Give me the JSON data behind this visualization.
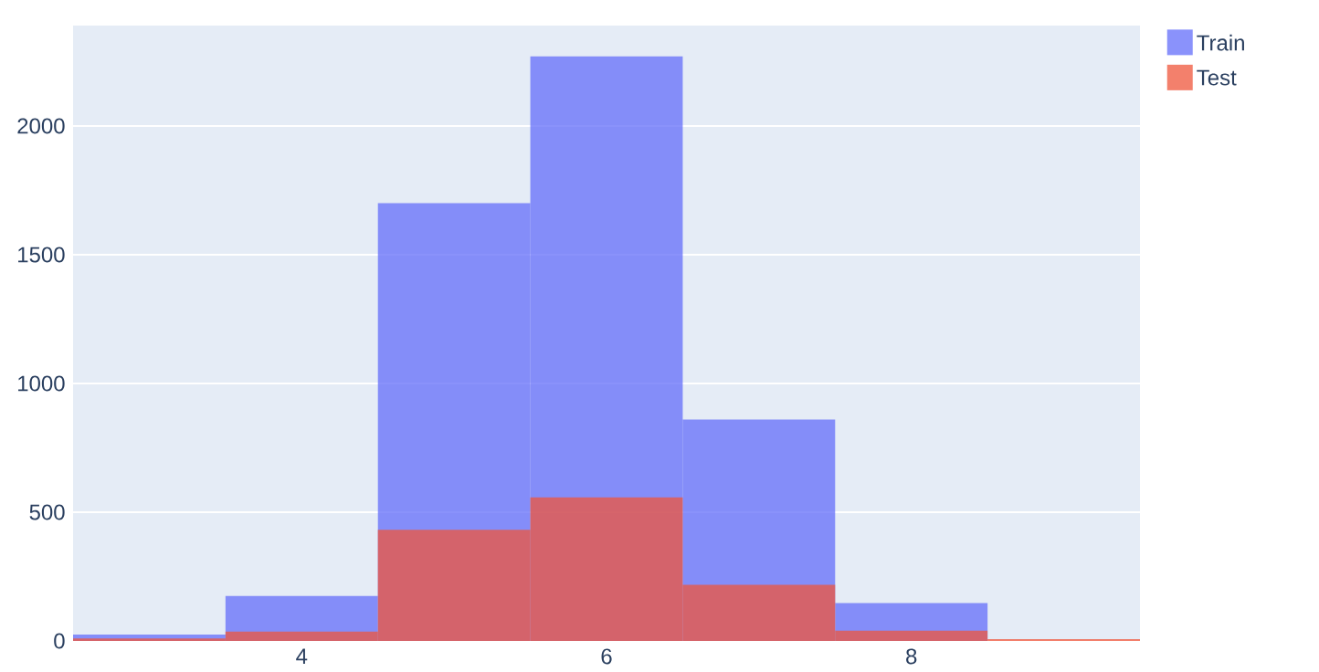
{
  "chart_data": {
    "type": "histogram",
    "bins": [
      2.5,
      3.5,
      4.5,
      5.5,
      6.5,
      7.5,
      8.5,
      9.5
    ],
    "series": [
      {
        "name": "Train",
        "color": "#636efa",
        "values": [
          25,
          175,
          1700,
          2270,
          860,
          147,
          null
        ]
      },
      {
        "name": "Test",
        "color": "#ef553b",
        "values": [
          10,
          36,
          432,
          558,
          218,
          40,
          7
        ]
      }
    ],
    "xlim": [
      2.5,
      9.5
    ],
    "ylim": [
      0,
      2390
    ],
    "xticks": [
      4,
      6,
      8
    ],
    "yticks": [
      0,
      500,
      1000,
      1500,
      2000
    ],
    "grid": "y",
    "legend": "top right"
  }
}
